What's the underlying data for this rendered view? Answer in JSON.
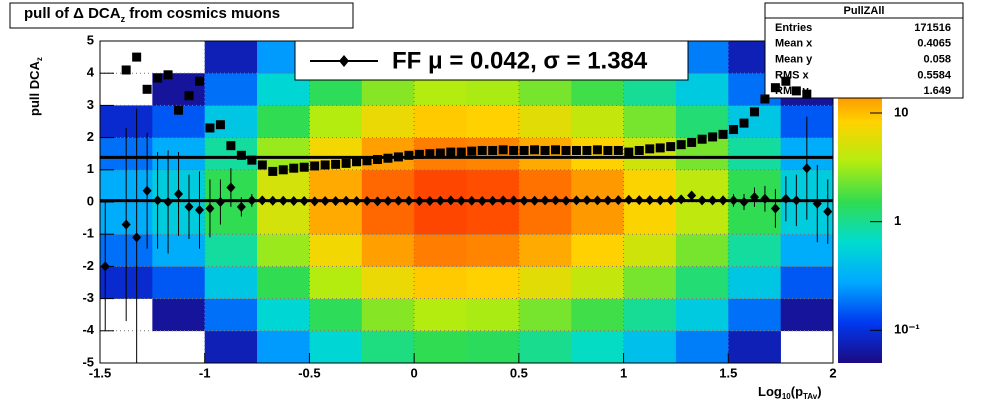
{
  "chart_data": {
    "type": "heatmap",
    "title": [
      "pull of Δ DCA",
      "z",
      " from cosmics muons"
    ],
    "xlabel": [
      "Log",
      "10",
      "(p",
      "TAv",
      ")"
    ],
    "ylabel": [
      "pull DCA",
      "z"
    ],
    "xlim": [
      -1.5,
      2
    ],
    "ylim": [
      -5,
      5
    ],
    "xticks": [
      -1.5,
      -1,
      -0.5,
      0,
      0.5,
      1,
      1.5,
      2
    ],
    "yticks": [
      -5,
      -4,
      -3,
      -2,
      -1,
      0,
      1,
      2,
      3,
      4,
      5
    ],
    "grid": true,
    "zlim": [
      0.05,
      46
    ],
    "zlog": true,
    "zticks": [
      {
        "value": 0.1,
        "label": "10⁻¹"
      },
      1,
      10
    ],
    "palette": [
      "#1c0a82",
      "#0038f0",
      "#00a8ff",
      "#00dcd0",
      "#30dc50",
      "#b4ec10",
      "#ffd200",
      "#ff7400",
      "#ff1800"
    ],
    "xbins": [
      -1.5,
      -1.25,
      -1,
      -0.75,
      -0.5,
      -0.25,
      0,
      0.25,
      0.5,
      0.75,
      1,
      1.25,
      1.5,
      1.75,
      2
    ],
    "ybins": [
      -5,
      -4,
      -3,
      -2,
      -1,
      0,
      1,
      2,
      3,
      4,
      5
    ],
    "z": [
      [
        0.015,
        0.025,
        0.075,
        0.25,
        0.6,
        1.1,
        1.5,
        1.4,
        1,
        0.7,
        0.4,
        0.2,
        0.075,
        0.025
      ],
      [
        0.036,
        0.06,
        0.18,
        0.6,
        1.44,
        2.64,
        3.6,
        3.36,
        2.4,
        1.68,
        0.96,
        0.48,
        0.18,
        0.06
      ],
      [
        0.09,
        0.15,
        0.45,
        1.5,
        3.6,
        6.6,
        9,
        8.4,
        6,
        4.2,
        2.4,
        1.2,
        0.45,
        0.15
      ],
      [
        0.18,
        0.3,
        0.9,
        3,
        7.2,
        13.2,
        18,
        16.8,
        12,
        8.4,
        4.8,
        2.4,
        0.9,
        0.3
      ],
      [
        0.3,
        0.5,
        1.5,
        5,
        12,
        22,
        30,
        28,
        20,
        14,
        8,
        4,
        1.5,
        0.5
      ],
      [
        0.3,
        0.5,
        1.5,
        5,
        12,
        22,
        30,
        28,
        20,
        14,
        8,
        4,
        1.5,
        0.5
      ],
      [
        0.18,
        0.3,
        0.9,
        3,
        7.2,
        13.2,
        18,
        16.8,
        12,
        8.4,
        4.8,
        2.4,
        0.9,
        0.3
      ],
      [
        0.09,
        0.15,
        0.45,
        1.5,
        3.6,
        6.6,
        9,
        8.4,
        6,
        4.2,
        2.4,
        1.2,
        0.45,
        0.15
      ],
      [
        0.036,
        0.06,
        0.18,
        0.6,
        1.44,
        2.64,
        3.6,
        3.36,
        2.4,
        1.68,
        0.96,
        0.48,
        0.18,
        0.06
      ],
      [
        0.015,
        0.025,
        0.075,
        0.25,
        0.6,
        1.1,
        1.5,
        1.4,
        1,
        0.7,
        0.4,
        0.2,
        0.075,
        0.025
      ]
    ],
    "x": [
      -1.475,
      -1.425,
      -1.375,
      -1.325,
      -1.275,
      -1.225,
      -1.175,
      -1.125,
      -1.075,
      -1.025,
      -0.975,
      -0.925,
      -0.875,
      -0.825,
      -0.775,
      -0.725,
      -0.675,
      -0.625,
      -0.575,
      -0.525,
      -0.475,
      -0.425,
      -0.375,
      -0.325,
      -0.275,
      -0.225,
      -0.175,
      -0.125,
      -0.075,
      -0.025,
      0.025,
      0.075,
      0.125,
      0.175,
      0.225,
      0.275,
      0.325,
      0.375,
      0.425,
      0.475,
      0.525,
      0.575,
      0.625,
      0.675,
      0.725,
      0.775,
      0.825,
      0.875,
      0.925,
      0.975,
      1.025,
      1.075,
      1.125,
      1.175,
      1.225,
      1.275,
      1.325,
      1.375,
      1.425,
      1.475,
      1.525,
      1.575,
      1.625,
      1.675,
      1.725,
      1.775,
      1.825,
      1.875,
      1.925,
      1.975
    ],
    "series": [
      {
        "color": "#000000",
        "marker": "square",
        "values": [
          null,
          null,
          4.1,
          4.5,
          3.5,
          3.85,
          3.95,
          2.85,
          3.3,
          3.75,
          2.3,
          2.4,
          1.75,
          1.45,
          1.3,
          1.15,
          0.95,
          1.0,
          1.05,
          1.08,
          1.12,
          1.15,
          1.17,
          1.2,
          1.25,
          1.28,
          1.32,
          1.36,
          1.4,
          1.45,
          1.48,
          1.5,
          1.52,
          1.55,
          1.55,
          1.58,
          1.6,
          1.6,
          1.62,
          1.6,
          1.6,
          1.62,
          1.6,
          1.62,
          1.6,
          1.6,
          1.6,
          1.62,
          1.6,
          1.6,
          1.55,
          1.6,
          1.65,
          1.68,
          1.72,
          1.78,
          1.85,
          1.95,
          2.02,
          2.1,
          2.25,
          2.45,
          2.8,
          3.2,
          3.55,
          3.75,
          3.45,
          3.35,
          null,
          null
        ]
      },
      {
        "color": "#000000",
        "marker": "diamond",
        "values": [
          -2.0,
          null,
          -0.7,
          -1.1,
          0.35,
          0.05,
          0.0,
          0.25,
          -0.15,
          -0.25,
          -0.2,
          0.0,
          0.45,
          -0.15,
          0.05,
          0.05,
          0.04,
          0.04,
          0.03,
          0.03,
          0.02,
          0.03,
          0.03,
          0.04,
          0.03,
          0.03,
          0.02,
          0.03,
          0.04,
          0.04,
          0.03,
          0.03,
          0.04,
          0.05,
          0.04,
          0.04,
          0.03,
          0.04,
          0.05,
          0.05,
          0.04,
          0.04,
          0.05,
          0.05,
          0.04,
          0.05,
          0.06,
          0.05,
          0.05,
          0.06,
          0.07,
          0.06,
          0.06,
          0.05,
          0.06,
          0.08,
          0.2,
          0.05,
          0.05,
          0.05,
          0.05,
          0.0,
          0.15,
          0.1,
          -0.2,
          0.1,
          0.05,
          1.05,
          -0.05,
          -0.3
        ],
        "errors": [
          2.0,
          null,
          3.0,
          4.0,
          1.8,
          1.5,
          1.6,
          1.3,
          1.0,
          1.2,
          0.9,
          0.7,
          0.6,
          0.3,
          0.2,
          0.1,
          0.1,
          0.1,
          0.1,
          0.1,
          0.05,
          0.05,
          0.05,
          0.05,
          0.05,
          0.05,
          0.05,
          0.05,
          0.05,
          0.05,
          0.05,
          0.05,
          0.05,
          0.05,
          0.05,
          0.05,
          0.05,
          0.05,
          0.05,
          0.05,
          0.05,
          0.05,
          0.05,
          0.05,
          0.05,
          0.05,
          0.05,
          0.05,
          0.05,
          0.05,
          0.06,
          0.06,
          0.06,
          0.06,
          0.06,
          0.06,
          0.1,
          0.1,
          0.1,
          0.15,
          0.2,
          0.25,
          0.3,
          0.4,
          0.6,
          0.7,
          0.8,
          1.6,
          1.2,
          1.0
        ]
      }
    ],
    "fit_mean": 0.042,
    "fit_sigma": 1.384,
    "legend": "FF μ =  0.042, σ =   1.384",
    "stats": {
      "title": "PullZAll",
      "rows": [
        [
          "Entries",
          171516
        ],
        [
          "Mean x",
          0.4065
        ],
        [
          "Mean y",
          0.058
        ],
        [
          "RMS x",
          0.5584
        ],
        [
          "RMS y",
          1.649
        ]
      ]
    }
  }
}
